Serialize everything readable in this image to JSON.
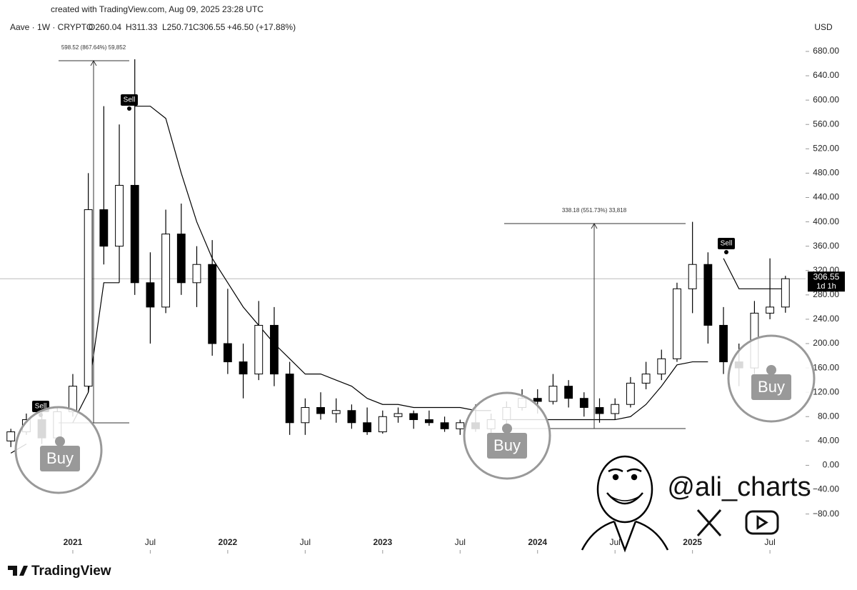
{
  "header": {
    "created": "created with TradingView.com, Aug 09, 2025 23:28 UTC",
    "symbol": "Aave · 1W · CRYPTO",
    "open": "O260.04",
    "high": "H311.33",
    "low": "L250.71",
    "close": "C306.55",
    "change": "+46.50 (+17.88%)"
  },
  "chart_data": {
    "type": "candlestick",
    "currency": "USD",
    "x": [
      2020.6,
      2020.7,
      2020.8,
      2020.9,
      2021.0,
      2021.1,
      2021.2,
      2021.3,
      2021.4,
      2021.5,
      2021.6,
      2021.7,
      2021.8,
      2021.9,
      2022.0,
      2022.1,
      2022.2,
      2022.3,
      2022.4,
      2022.5,
      2022.6,
      2022.7,
      2022.8,
      2022.9,
      2023.0,
      2023.1,
      2023.2,
      2023.3,
      2023.4,
      2023.5,
      2023.6,
      2023.7,
      2023.8,
      2023.9,
      2024.0,
      2024.1,
      2024.2,
      2024.3,
      2024.4,
      2024.5,
      2024.6,
      2024.7,
      2024.8,
      2024.9,
      2025.0,
      2025.1,
      2025.2,
      2025.3,
      2025.4,
      2025.5,
      2025.6
    ],
    "open": [
      40,
      55,
      75,
      45,
      88,
      130,
      420,
      360,
      460,
      300,
      260,
      380,
      300,
      330,
      200,
      170,
      150,
      230,
      150,
      70,
      95,
      85,
      90,
      70,
      55,
      80,
      85,
      75,
      70,
      60,
      70,
      60,
      75,
      95,
      110,
      105,
      130,
      110,
      95,
      85,
      100,
      135,
      150,
      175,
      290,
      330,
      230,
      170,
      160,
      250,
      260.04
    ],
    "high": [
      60,
      85,
      95,
      95,
      150,
      480,
      590,
      560,
      667,
      350,
      420,
      430,
      360,
      370,
      290,
      200,
      270,
      260,
      170,
      110,
      120,
      110,
      100,
      95,
      90,
      95,
      90,
      90,
      80,
      75,
      100,
      85,
      105,
      125,
      125,
      150,
      140,
      120,
      110,
      110,
      145,
      170,
      190,
      300,
      400,
      350,
      260,
      200,
      270,
      340,
      311.33
    ],
    "low": [
      30,
      50,
      35,
      40,
      80,
      120,
      330,
      300,
      280,
      200,
      250,
      280,
      260,
      180,
      150,
      110,
      140,
      130,
      50,
      50,
      75,
      70,
      60,
      50,
      52,
      70,
      60,
      65,
      55,
      50,
      55,
      48,
      65,
      90,
      85,
      100,
      95,
      80,
      70,
      75,
      95,
      125,
      140,
      170,
      250,
      200,
      150,
      130,
      150,
      240,
      250.71
    ],
    "close": [
      55,
      75,
      45,
      88,
      130,
      420,
      360,
      460,
      300,
      260,
      380,
      300,
      330,
      200,
      170,
      150,
      230,
      150,
      70,
      95,
      85,
      90,
      70,
      55,
      80,
      85,
      75,
      70,
      60,
      70,
      60,
      75,
      95,
      110,
      105,
      130,
      110,
      95,
      85,
      100,
      135,
      150,
      175,
      290,
      330,
      230,
      170,
      160,
      250,
      260,
      306.55
    ],
    "trend_upper": [
      null,
      null,
      95,
      95,
      null,
      null,
      null,
      null,
      590,
      590,
      570,
      480,
      400,
      340,
      300,
      260,
      230,
      200,
      175,
      150,
      150,
      140,
      130,
      110,
      100,
      100,
      95,
      95,
      95,
      95,
      90,
      90,
      null,
      null,
      null,
      null,
      null,
      null,
      null,
      null,
      null,
      null,
      null,
      null,
      null,
      null,
      340,
      290,
      290,
      290,
      290
    ],
    "trend_lower": [
      20,
      35,
      null,
      null,
      70,
      120,
      300,
      300,
      null,
      null,
      null,
      null,
      null,
      null,
      null,
      null,
      null,
      null,
      null,
      null,
      null,
      null,
      null,
      null,
      null,
      null,
      null,
      null,
      null,
      null,
      null,
      null,
      75,
      75,
      75,
      75,
      75,
      75,
      75,
      75,
      80,
      100,
      130,
      165,
      170,
      170,
      null,
      null,
      null,
      null,
      null
    ],
    "last_price": 306.55,
    "countdown": "1d 1h",
    "xlim": [
      2020.53,
      2025.73
    ],
    "ylim": [
      -145,
      741
    ],
    "xticks": [
      2021,
      {
        "value": 2021.5,
        "label": "Jul"
      },
      2022,
      {
        "value": 2022.5,
        "label": "Jul"
      },
      2023,
      {
        "value": 2023.5,
        "label": "Jul"
      },
      2024,
      {
        "value": 2024.5,
        "label": "Jul"
      },
      2025,
      {
        "value": 2025.5,
        "label": "Jul"
      }
    ],
    "yticks": [
      {
        "value": 680,
        "label": "680.00"
      },
      {
        "value": 640,
        "label": "640.00"
      },
      {
        "value": 600,
        "label": "600.00"
      },
      {
        "value": 560,
        "label": "560.00"
      },
      {
        "value": 520,
        "label": "520.00"
      },
      {
        "value": 480,
        "label": "480.00"
      },
      {
        "value": 440,
        "label": "440.00"
      },
      {
        "value": 400,
        "label": "400.00"
      },
      {
        "value": 360,
        "label": "360.00"
      },
      {
        "value": 320,
        "label": "320.00"
      },
      {
        "value": 280,
        "label": "280.00"
      },
      {
        "value": 240,
        "label": "240.00"
      },
      {
        "value": 200,
        "label": "200.00"
      },
      {
        "value": 160,
        "label": "160.00"
      },
      {
        "value": 120,
        "label": "120.00"
      },
      {
        "value": 80,
        "label": "80.00"
      },
      {
        "value": 40,
        "label": "40.00"
      },
      {
        "value": 0,
        "label": "0.00"
      },
      {
        "value": -40,
        "label": "−40.00"
      },
      {
        "value": -80,
        "label": "−80.00"
      }
    ],
    "up_color": "#ffffff",
    "down_color": "#000000",
    "trend_color": "#000000",
    "annotations": {
      "measure_1": "598.52 (867.64%) 59,852",
      "measure_2": "338.18 (551.73%) 33,818",
      "sell": [
        "Sell",
        "Sell",
        "Sell"
      ],
      "buy": [
        "Buy",
        "Buy",
        "Buy"
      ]
    }
  },
  "watermark": {
    "handle": "@ali_charts",
    "brand": "TradingView"
  }
}
